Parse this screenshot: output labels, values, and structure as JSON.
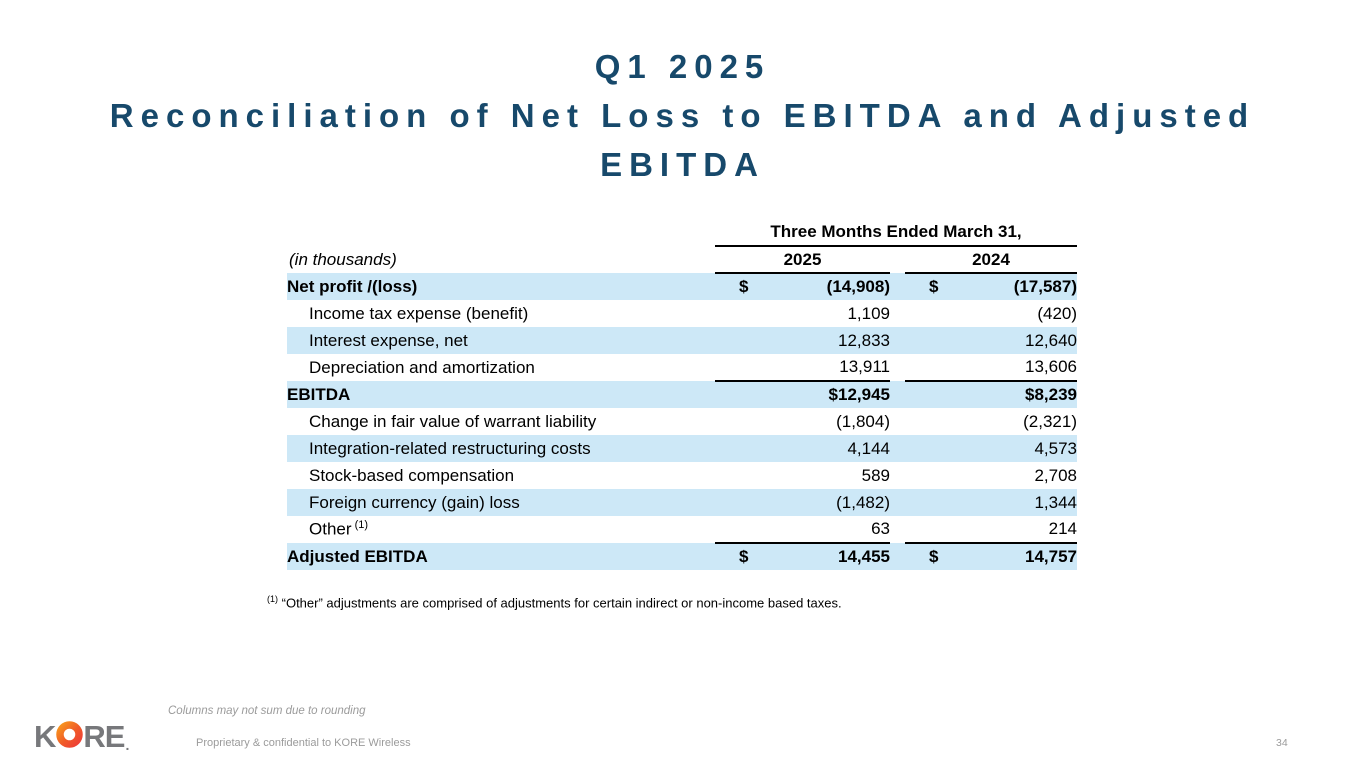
{
  "title": {
    "line1": "Q1 2025",
    "line2": "Reconciliation of Net Loss to EBITDA and Adjusted",
    "line3": "EBITDA"
  },
  "table": {
    "period_header": "Three Months Ended March 31,",
    "units_label": "(in thousands)",
    "col_2025": "2025",
    "col_2024": "2024",
    "rows": [
      {
        "label": "Net profit /(loss)",
        "sup": "",
        "type": "total",
        "shade": true,
        "rule_below": false,
        "cells": [
          {
            "prefix": "$",
            "value": "(14,908)"
          },
          {
            "prefix": "$",
            "value": "(17,587)"
          }
        ]
      },
      {
        "label": "Income tax expense (benefit)",
        "sup": "",
        "type": "item",
        "shade": false,
        "rule_below": false,
        "cells": [
          {
            "prefix": "",
            "value": "1,109"
          },
          {
            "prefix": "",
            "value": "(420)"
          }
        ]
      },
      {
        "label": "Interest expense, net",
        "sup": "",
        "type": "item",
        "shade": true,
        "rule_below": false,
        "cells": [
          {
            "prefix": "",
            "value": "12,833"
          },
          {
            "prefix": "",
            "value": "12,640"
          }
        ]
      },
      {
        "label": "Depreciation and amortization",
        "sup": "",
        "type": "item",
        "shade": false,
        "rule_below": true,
        "cells": [
          {
            "prefix": "",
            "value": "13,911"
          },
          {
            "prefix": "",
            "value": "13,606"
          }
        ]
      },
      {
        "label": "EBITDA",
        "sup": "",
        "type": "total",
        "shade": true,
        "rule_below": false,
        "cells": [
          {
            "prefix": "",
            "value": "$12,945"
          },
          {
            "prefix": "",
            "value": "$8,239"
          }
        ]
      },
      {
        "label": "Change in fair value of warrant liability",
        "sup": "",
        "type": "item",
        "shade": false,
        "rule_below": false,
        "cells": [
          {
            "prefix": "",
            "value": "(1,804)"
          },
          {
            "prefix": "",
            "value": "(2,321)"
          }
        ]
      },
      {
        "label": "Integration-related restructuring costs",
        "sup": "",
        "type": "item",
        "shade": true,
        "rule_below": false,
        "cells": [
          {
            "prefix": "",
            "value": "4,144"
          },
          {
            "prefix": "",
            "value": "4,573"
          }
        ]
      },
      {
        "label": "Stock-based compensation",
        "sup": "",
        "type": "item",
        "shade": false,
        "rule_below": false,
        "cells": [
          {
            "prefix": "",
            "value": "589"
          },
          {
            "prefix": "",
            "value": "2,708"
          }
        ]
      },
      {
        "label": "Foreign currency (gain) loss",
        "sup": "",
        "type": "item",
        "shade": true,
        "rule_below": false,
        "cells": [
          {
            "prefix": "",
            "value": "(1,482)"
          },
          {
            "prefix": "",
            "value": "1,344"
          }
        ]
      },
      {
        "label": "Other",
        "sup": "(1)",
        "type": "item",
        "shade": false,
        "rule_below": true,
        "cells": [
          {
            "prefix": "",
            "value": "63"
          },
          {
            "prefix": "",
            "value": "214"
          }
        ]
      },
      {
        "label": "Adjusted EBITDA",
        "sup": "",
        "type": "total",
        "shade": true,
        "rule_below": false,
        "cells": [
          {
            "prefix": "$",
            "value": "14,455"
          },
          {
            "prefix": "$",
            "value": "14,757"
          }
        ]
      }
    ]
  },
  "footnote": {
    "marker": "(1)",
    "text": "“Other” adjustments are comprised of adjustments for certain indirect or non-income based taxes."
  },
  "footer": {
    "rounding_note": "Columns may not sum due to rounding",
    "confidential_note": "Proprietary & confidential to KORE Wireless",
    "page_number": "34",
    "logo_k": "K",
    "logo_re": "RE",
    "logo_dot": "."
  },
  "colors": {
    "title": "#17496b",
    "row_shade": "#cde8f7",
    "footer_gray": "#9b9b9b",
    "logo_gray": "#77787b",
    "logo_orange": "#f7941e",
    "logo_red": "#ee3f36"
  }
}
